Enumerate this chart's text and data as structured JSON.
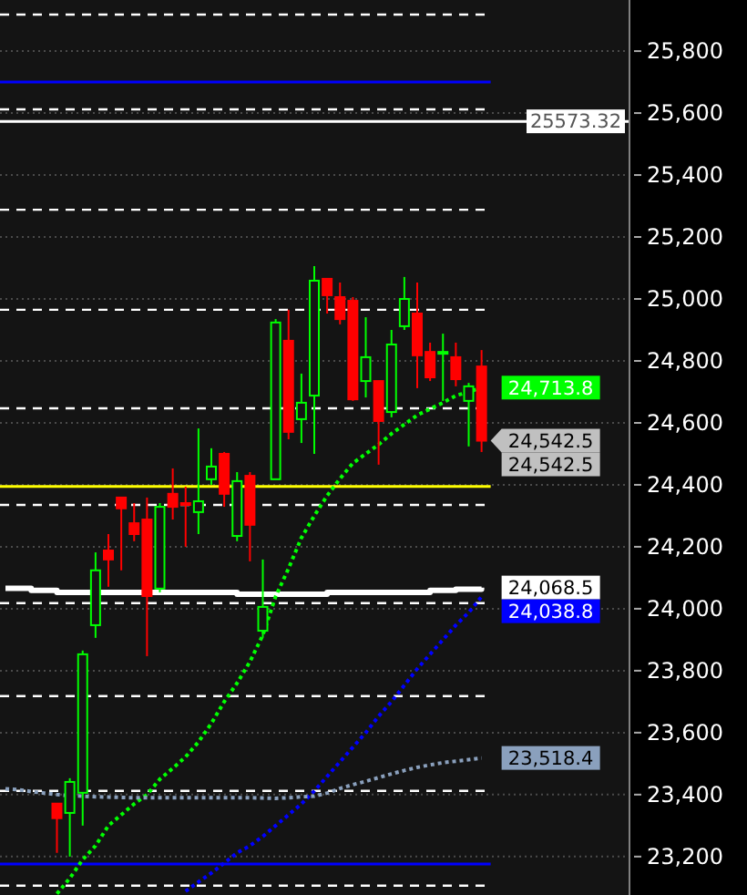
{
  "chart_data": {
    "type": "candlestick",
    "categories": [
      null,
      null,
      null,
      null,
      null,
      null,
      null,
      null,
      null,
      null,
      null,
      null,
      null,
      null,
      null,
      null,
      null,
      null,
      null,
      null,
      null,
      null,
      null,
      null,
      null,
      null,
      null,
      null,
      null,
      null,
      null,
      null,
      null,
      null,
      null,
      null,
      null,
      null,
      null,
      null,
      null,
      null,
      null,
      null,
      null,
      null,
      null,
      null,
      null
    ],
    "ohlc": [
      null,
      null,
      null,
      null,
      [
        23371,
        23371,
        23212,
        23324
      ],
      [
        23341,
        23453,
        23200,
        23441
      ],
      [
        23406,
        23865,
        23300,
        23853
      ],
      [
        23947,
        24182,
        23906,
        24124
      ],
      [
        24188,
        24241,
        24071,
        24159
      ],
      [
        24359,
        24359,
        24124,
        24324
      ],
      [
        24276,
        24341,
        24218,
        24241
      ],
      [
        24288,
        24359,
        23847,
        24041
      ],
      [
        24065,
        24341,
        24053,
        24329
      ],
      [
        24371,
        24453,
        24288,
        24329
      ],
      [
        24341,
        24394,
        24200,
        24335
      ],
      [
        24312,
        24582,
        24241,
        24347
      ],
      [
        24418,
        24518,
        24400,
        24459
      ],
      [
        24500,
        24506,
        24329,
        24371
      ],
      [
        24235,
        24441,
        24218,
        24412
      ],
      [
        24429,
        24441,
        24153,
        24271
      ],
      [
        23929,
        24159,
        23906,
        24006
      ],
      [
        24418,
        24935,
        24418,
        24924
      ],
      [
        24865,
        24965,
        24547,
        24571
      ],
      [
        24612,
        24759,
        24535,
        24665
      ],
      [
        24688,
        25106,
        24500,
        25059
      ],
      [
        25065,
        25065,
        24953,
        25012
      ],
      [
        25006,
        25053,
        24918,
        24935
      ],
      [
        24994,
        25006,
        24671,
        24676
      ],
      [
        24735,
        24941,
        24682,
        24812
      ],
      [
        24735,
        24735,
        24465,
        24606
      ],
      [
        24635,
        24900,
        24618,
        24853
      ],
      [
        24912,
        25071,
        24900,
        25000
      ],
      [
        24953,
        25053,
        24712,
        24818
      ],
      [
        24829,
        24859,
        24735,
        24747
      ],
      [
        24824,
        24888,
        24671,
        24829
      ],
      [
        24812,
        24859,
        24718,
        24741
      ],
      [
        24671,
        24729,
        24524,
        24718
      ],
      [
        24782,
        24835,
        24506,
        24542.5
      ],
      null,
      null,
      null,
      null,
      null,
      null,
      null,
      null,
      null,
      null,
      null
    ],
    "colors": [
      null,
      null,
      null,
      null,
      "#ff0000",
      "#00ff00",
      "#00ff00",
      "#00ff00",
      "#ff0000",
      "#ff0000",
      "#ff0000",
      "#ff0000",
      "#00ff00",
      "#ff0000",
      "#ff0000",
      "#00ff00",
      "#00ff00",
      "#ff0000",
      "#00ff00",
      "#ff0000",
      "#00ff00",
      "#00ff00",
      "#ff0000",
      "#00ff00",
      "#00ff00",
      "#ff0000",
      "#ff0000",
      "#ff0000",
      "#00ff00",
      "#ff0000",
      "#00ff00",
      "#00ff00",
      "#ff0000",
      "#ff0000",
      "#00ff00",
      "#ff0000",
      "#00ff00",
      "#ff0000",
      null,
      null,
      null,
      null,
      null,
      null,
      null,
      null,
      null,
      null,
      null
    ],
    "value_labels": [
      null,
      null,
      null,
      null,
      null,
      null,
      null,
      null,
      null,
      null,
      null,
      null,
      null,
      null,
      null,
      null,
      null,
      null,
      null,
      null,
      null,
      null,
      null,
      null,
      null,
      null,
      null,
      null,
      null,
      null,
      null,
      null,
      null,
      null,
      null,
      null,
      null,
      "24,542.5",
      null,
      null,
      null,
      null,
      null,
      null,
      null,
      null,
      null,
      null,
      null
    ],
    "series": [
      {
        "type": "step",
        "color": "#ffffff",
        "values": [
          24066,
          24066,
          24059,
          24059,
          24053,
          24053,
          24053,
          24053,
          24053,
          24053,
          24053,
          24053,
          24053,
          24053,
          24053,
          24053,
          24053,
          24053,
          24047,
          24047,
          24047,
          24047,
          24047,
          24047,
          24047,
          24053,
          24053,
          24053,
          24053,
          24053,
          24053,
          24053,
          24053,
          24059,
          24059,
          24063,
          24063,
          24068.5,
          null,
          null,
          null,
          null,
          null,
          null,
          null,
          null,
          null,
          null,
          null
        ],
        "value_labels": [
          null,
          null,
          null,
          null,
          null,
          null,
          null,
          null,
          null,
          null,
          null,
          null,
          null,
          null,
          null,
          null,
          null,
          null,
          null,
          null,
          null,
          null,
          null,
          null,
          null,
          null,
          null,
          null,
          null,
          null,
          null,
          null,
          null,
          null,
          null,
          null,
          null,
          "24,068.5",
          null,
          null,
          null,
          null,
          null,
          null,
          null,
          null,
          null,
          null,
          null
        ]
      },
      {
        "type": "line",
        "color": "#00ff00",
        "line_style": "dotted",
        "values": [
          null,
          null,
          null,
          null,
          23080,
          23130,
          23190,
          23235,
          23300,
          23335,
          23370,
          23400,
          23450,
          23485,
          23522,
          23570,
          23630,
          23700,
          23760,
          23829,
          23915,
          24040,
          24130,
          24229,
          24300,
          24365,
          24420,
          24470,
          24500,
          24530,
          24565,
          24595,
          24625,
          24645,
          24665,
          24688,
          24700,
          24713.8,
          null,
          null,
          null,
          null,
          null,
          null,
          null,
          null,
          null,
          null,
          null
        ],
        "value_labels": [
          null,
          null,
          null,
          null,
          null,
          null,
          null,
          null,
          null,
          null,
          null,
          null,
          null,
          null,
          null,
          null,
          null,
          null,
          null,
          null,
          null,
          null,
          null,
          null,
          null,
          null,
          null,
          null,
          null,
          null,
          null,
          null,
          null,
          null,
          null,
          null,
          null,
          "24,713.8",
          null,
          null,
          null,
          null,
          null,
          null,
          null,
          null,
          null,
          null,
          null
        ]
      },
      {
        "type": "line",
        "color": "#0000ff",
        "line_style": "dotted",
        "values": [
          null,
          null,
          null,
          null,
          null,
          null,
          null,
          null,
          null,
          null,
          null,
          null,
          null,
          null,
          23088,
          23118,
          23147,
          23179,
          23212,
          23235,
          23265,
          23300,
          23335,
          23370,
          23412,
          23459,
          23506,
          23553,
          23600,
          23653,
          23700,
          23753,
          23806,
          23853,
          23900,
          23947,
          23988,
          24038.8,
          null,
          null,
          null,
          null,
          null,
          null,
          null,
          null,
          null,
          null,
          null
        ],
        "value_labels": [
          null,
          null,
          null,
          null,
          null,
          null,
          null,
          null,
          null,
          null,
          null,
          null,
          null,
          null,
          null,
          null,
          null,
          null,
          null,
          null,
          null,
          null,
          null,
          null,
          null,
          null,
          null,
          null,
          null,
          null,
          null,
          null,
          null,
          null,
          null,
          null,
          null,
          "24,038.8",
          null,
          null,
          null,
          null,
          null,
          null,
          null,
          null,
          null,
          null,
          null
        ]
      },
      {
        "type": "line",
        "color": "#8aa0bd",
        "line_style": "dotted",
        "values": [
          23419,
          23416,
          23410,
          23405,
          23400,
          23397,
          23395,
          23393,
          23392,
          23391,
          23390,
          23390,
          23390,
          23390,
          23390,
          23390,
          23390,
          23390,
          23390,
          23390,
          23389,
          23388,
          23390,
          23393,
          23395,
          23405,
          23420,
          23432,
          23443,
          23455,
          23467,
          23478,
          23488,
          23496,
          23503,
          23508,
          23513,
          23518.4,
          null,
          null,
          null,
          null,
          null,
          null,
          null,
          null,
          null,
          null,
          null
        ],
        "value_labels": [
          null,
          null,
          null,
          null,
          null,
          null,
          null,
          null,
          null,
          null,
          null,
          null,
          null,
          null,
          null,
          null,
          null,
          null,
          null,
          null,
          null,
          null,
          null,
          null,
          null,
          null,
          null,
          null,
          null,
          null,
          null,
          null,
          null,
          null,
          null,
          null,
          null,
          "23,518.4",
          null,
          null,
          null,
          null,
          null,
          null,
          null,
          null,
          null,
          null,
          null
        ]
      }
    ],
    "ylim": [
      23076,
      25965
    ],
    "yticks": [
      {
        "value": 23200,
        "label": "23,200"
      },
      {
        "value": 23400,
        "label": "23,400"
      },
      {
        "value": 23600,
        "label": "23,600"
      },
      {
        "value": 23800,
        "label": "23,800"
      },
      {
        "value": 24000,
        "label": "24,000"
      },
      {
        "value": 24200,
        "label": "24,200"
      },
      {
        "value": 24400,
        "label": "24,400"
      },
      {
        "value": 24600,
        "label": "24,600"
      },
      {
        "value": 24800,
        "label": "24,800"
      },
      {
        "value": 25000,
        "label": "25,000"
      },
      {
        "value": 25200,
        "label": "25,200"
      },
      {
        "value": 25400,
        "label": "25,400"
      },
      {
        "value": 25600,
        "label": "25,600"
      },
      {
        "value": 25800,
        "label": "25,800"
      }
    ],
    "grid": "y",
    "ref_lines": [
      {
        "axis": "y",
        "value": 25918,
        "color": "#ffffff",
        "line_style": "dashed"
      },
      {
        "axis": "y",
        "value": 25700,
        "color": "#0000ff"
      },
      {
        "axis": "y",
        "value": 25612,
        "color": "#ffffff",
        "line_style": "dashed"
      },
      {
        "axis": "y",
        "value": 25573.32,
        "label": "25573.32",
        "color": "#ffffff"
      },
      {
        "axis": "y",
        "value": 25288,
        "color": "#ffffff",
        "line_style": "dashed"
      },
      {
        "axis": "y",
        "value": 24965,
        "color": "#ffffff",
        "line_style": "dashed"
      },
      {
        "axis": "y",
        "value": 24647,
        "color": "#ffffff",
        "line_style": "dashed"
      },
      {
        "axis": "y",
        "value": 24395,
        "color": "#ffff00"
      },
      {
        "axis": "y",
        "value": 24335,
        "color": "#ffffff",
        "line_style": "dashed"
      },
      {
        "axis": "y",
        "value": 24018,
        "color": "#ffffff",
        "line_style": "dashed"
      },
      {
        "axis": "y",
        "value": 23718,
        "color": "#ffffff",
        "line_style": "dashed"
      },
      {
        "axis": "y",
        "value": 23412,
        "color": "#ffffff",
        "line_style": "dashed"
      },
      {
        "axis": "y",
        "value": 23176,
        "color": "#0000ff"
      },
      {
        "axis": "y",
        "value": 23106,
        "color": "#ffffff",
        "line_style": "dashed"
      }
    ],
    "annotations": [
      "24,542.5"
    ]
  }
}
